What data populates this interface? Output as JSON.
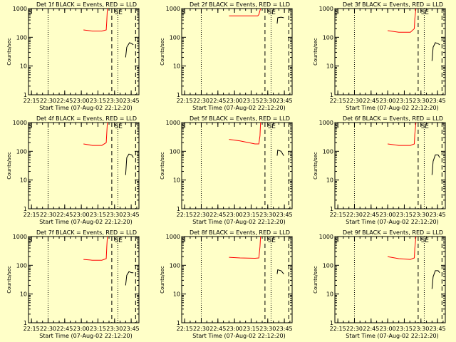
{
  "page": {
    "background": "#ffffc8"
  },
  "chart_data": {
    "type": "line",
    "scale": "log",
    "ylim": [
      1,
      1000
    ],
    "y_ticks": [
      "1",
      "10",
      "100",
      "1000"
    ],
    "xlim": [
      "22:12:20",
      "23:52:00"
    ],
    "x_ticks": [
      "22:15",
      "22:30",
      "22:45",
      "23:00",
      "23:15",
      "23:30",
      "23:45"
    ],
    "ylabel": "Counts/sec",
    "xlabel": "Start Time (07-Aug-02 22:12:20)",
    "event_color": "#000000",
    "lld_color": "#ff0000",
    "markers": [
      {
        "label": "S",
        "time": "22:14:00"
      },
      {
        "label": "S",
        "time": "23:31:50"
      },
      {
        "label": "E",
        "time": "23:35:20"
      }
    ],
    "dotted_lines": [
      "22:30:00",
      "23:33:00"
    ],
    "dashed_lines": [
      "23:27:30",
      "23:49:00"
    ],
    "panels": [
      {
        "title": "Det 1f BLACK = Events, RED = LLD",
        "lld": [
          [
            "23:02:00",
            180
          ],
          [
            "23:10:00",
            165
          ],
          [
            "23:18:30",
            165
          ],
          [
            "23:22:30",
            180
          ],
          [
            "23:23:00",
            380
          ],
          [
            "23:23:30",
            1000
          ]
        ],
        "events": [
          [
            "23:40:00",
            20
          ],
          [
            "23:41:00",
            45
          ],
          [
            "23:43:30",
            65
          ],
          [
            "23:45:30",
            60
          ],
          [
            "23:47:00",
            55
          ]
        ]
      },
      {
        "title": "Det 2f BLACK = Events, RED = LLD",
        "lld": [
          [
            "22:55:00",
            560
          ],
          [
            "23:05:00",
            560
          ],
          [
            "23:21:00",
            560
          ],
          [
            "23:22:00",
            620
          ],
          [
            "23:23:30",
            1000
          ]
        ],
        "events": [
          [
            "23:38:30",
            300
          ],
          [
            "23:39:00",
            480
          ],
          [
            "23:42:00",
            500
          ],
          [
            "23:44:30",
            480
          ]
        ]
      },
      {
        "title": "Det 3f BLACK = Events, RED = LLD",
        "lld": [
          [
            "23:00:00",
            170
          ],
          [
            "23:10:00",
            150
          ],
          [
            "23:20:30",
            150
          ],
          [
            "23:24:00",
            200
          ],
          [
            "23:24:30",
            450
          ],
          [
            "23:25:30",
            1000
          ]
        ],
        "events": [
          [
            "23:40:00",
            15
          ],
          [
            "23:41:00",
            45
          ],
          [
            "23:43:00",
            65
          ],
          [
            "23:45:30",
            60
          ],
          [
            "23:47:00",
            55
          ]
        ]
      },
      {
        "title": "Det 4f BLACK = Events, RED = LLD",
        "lld": [
          [
            "23:02:00",
            180
          ],
          [
            "23:10:00",
            160
          ],
          [
            "23:18:30",
            160
          ],
          [
            "23:22:30",
            200
          ],
          [
            "23:23:00",
            450
          ],
          [
            "23:23:30",
            1000
          ]
        ],
        "events": [
          [
            "23:40:00",
            15
          ],
          [
            "23:41:00",
            60
          ],
          [
            "23:43:00",
            80
          ],
          [
            "23:45:30",
            75
          ],
          [
            "23:47:00",
            60
          ]
        ]
      },
      {
        "title": "Det 5f BLACK = Events, RED = LLD",
        "lld": [
          [
            "22:55:00",
            260
          ],
          [
            "23:05:00",
            230
          ],
          [
            "23:18:30",
            180
          ],
          [
            "23:22:00",
            180
          ],
          [
            "23:23:00",
            350
          ],
          [
            "23:23:30",
            1000
          ]
        ],
        "events": [
          [
            "23:38:30",
            70
          ],
          [
            "23:39:00",
            110
          ],
          [
            "23:42:00",
            100
          ],
          [
            "23:44:30",
            70
          ]
        ]
      },
      {
        "title": "Det 6f BLACK = Events, RED = LLD",
        "lld": [
          [
            "23:00:00",
            180
          ],
          [
            "23:10:00",
            160
          ],
          [
            "23:20:30",
            160
          ],
          [
            "23:24:00",
            180
          ],
          [
            "23:24:30",
            400
          ],
          [
            "23:25:30",
            1000
          ]
        ],
        "events": [
          [
            "23:40:00",
            15
          ],
          [
            "23:41:00",
            45
          ],
          [
            "23:43:00",
            75
          ],
          [
            "23:45:30",
            75
          ],
          [
            "23:47:00",
            60
          ]
        ]
      },
      {
        "title": "Det 7f BLACK = Events, RED = LLD",
        "lld": [
          [
            "23:02:00",
            160
          ],
          [
            "23:10:00",
            150
          ],
          [
            "23:18:30",
            150
          ],
          [
            "23:22:30",
            170
          ],
          [
            "23:23:00",
            450
          ],
          [
            "23:23:30",
            1000
          ]
        ],
        "events": [
          [
            "23:40:00",
            20
          ],
          [
            "23:41:00",
            45
          ],
          [
            "23:43:00",
            60
          ],
          [
            "23:45:30",
            55
          ],
          [
            "23:47:00",
            55
          ]
        ]
      },
      {
        "title": "Det 8f BLACK = Events, RED = LLD",
        "lld": [
          [
            "22:55:00",
            190
          ],
          [
            "23:05:00",
            180
          ],
          [
            "23:18:30",
            175
          ],
          [
            "23:22:00",
            180
          ],
          [
            "23:23:00",
            450
          ],
          [
            "23:23:30",
            1000
          ]
        ],
        "events": [
          [
            "23:38:30",
            50
          ],
          [
            "23:39:00",
            70
          ],
          [
            "23:42:00",
            65
          ],
          [
            "23:44:30",
            50
          ]
        ]
      },
      {
        "title": "Det 9f BLACK = Events, RED = LLD",
        "lld": [
          [
            "23:00:00",
            200
          ],
          [
            "23:10:00",
            170
          ],
          [
            "23:20:30",
            160
          ],
          [
            "23:24:00",
            180
          ],
          [
            "23:24:30",
            400
          ],
          [
            "23:25:30",
            1000
          ]
        ],
        "events": [
          [
            "23:40:00",
            15
          ],
          [
            "23:41:00",
            40
          ],
          [
            "23:43:00",
            65
          ],
          [
            "23:45:30",
            65
          ],
          [
            "23:47:00",
            55
          ]
        ]
      }
    ]
  }
}
